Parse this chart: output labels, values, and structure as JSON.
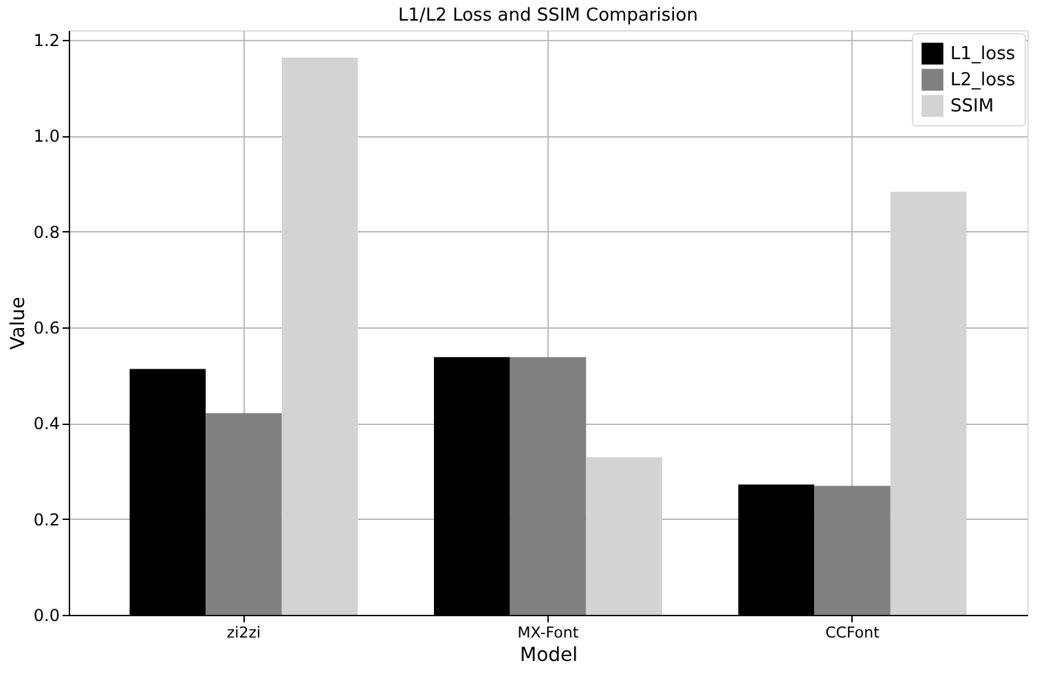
{
  "chart_data": {
    "type": "bar",
    "title": "L1/L2 Loss and SSIM Comparision",
    "xlabel": "Model",
    "ylabel": "Value",
    "categories": [
      "zi2zi",
      "MX-Font",
      "CCFont"
    ],
    "series": [
      {
        "name": "L1_loss",
        "color": "#000000",
        "values": [
          0.513,
          0.538,
          0.272
        ]
      },
      {
        "name": "L2_loss",
        "color": "#808080",
        "values": [
          0.421,
          0.538,
          0.269
        ]
      },
      {
        "name": "SSIM",
        "color": "#d3d3d3",
        "values": [
          1.163,
          0.329,
          0.883
        ]
      }
    ],
    "ylim": [
      0,
      1.22
    ],
    "yticks": [
      {
        "value": 0,
        "label": "0.0"
      },
      0.2,
      0.4,
      0.6,
      0.8,
      {
        "value": 1,
        "label": "1.0"
      },
      1.2
    ],
    "grid": true,
    "legend": "top right"
  }
}
